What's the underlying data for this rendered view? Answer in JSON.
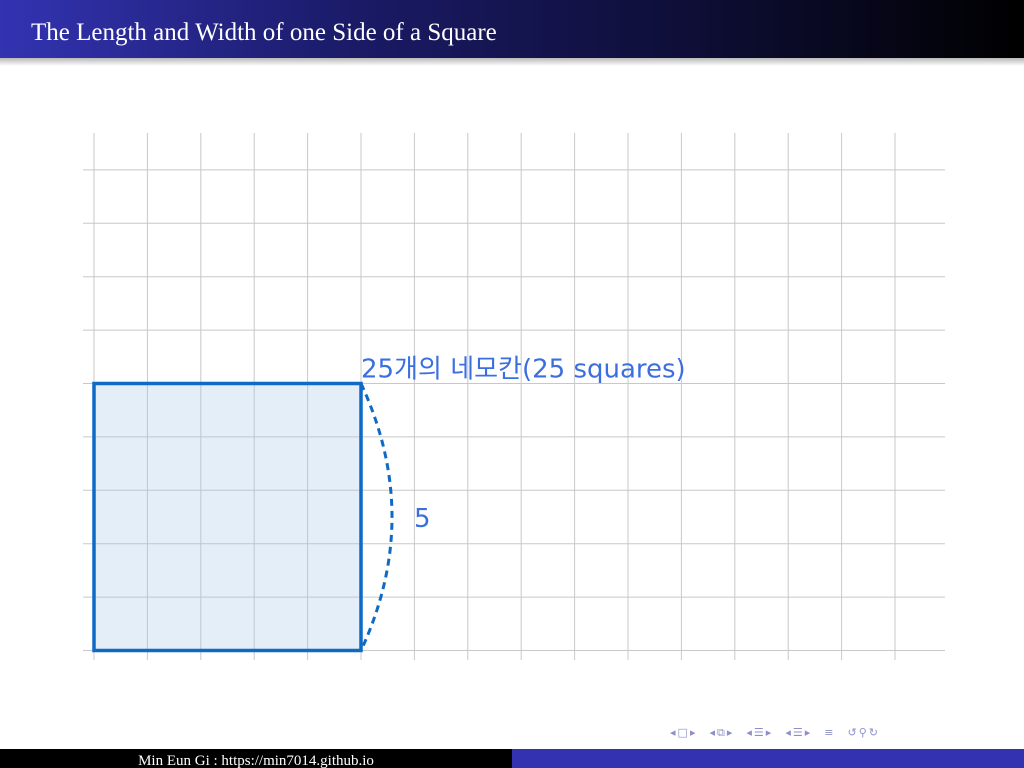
{
  "slide": {
    "title": "The Length and Width of one Side of a Square"
  },
  "diagram": {
    "grid_columns": 16,
    "grid_rows": 9,
    "square_side": 5,
    "area_label": "25개의 네모칸(25 squares)",
    "side_label": "5",
    "colors": {
      "grid": "#c8c8c8",
      "square_fill": "#e3eef9",
      "square_stroke": "#0f6ac6",
      "label": "#3b6fe0"
    }
  },
  "footer": {
    "author_text": "Min Eun Gi : https://min7014.github.io"
  },
  "navigation": {
    "icons": [
      "arrow-left-icon",
      "frame-icon",
      "arrow-right-icon",
      "arrow-left-icon",
      "subsection-icon",
      "arrow-right-icon",
      "arrow-left-icon",
      "section-icon",
      "arrow-right-icon",
      "arrow-left-icon",
      "section-icon",
      "arrow-right-icon",
      "align-icon",
      "undo-icon",
      "zoom-icon",
      "redo-icon"
    ]
  }
}
